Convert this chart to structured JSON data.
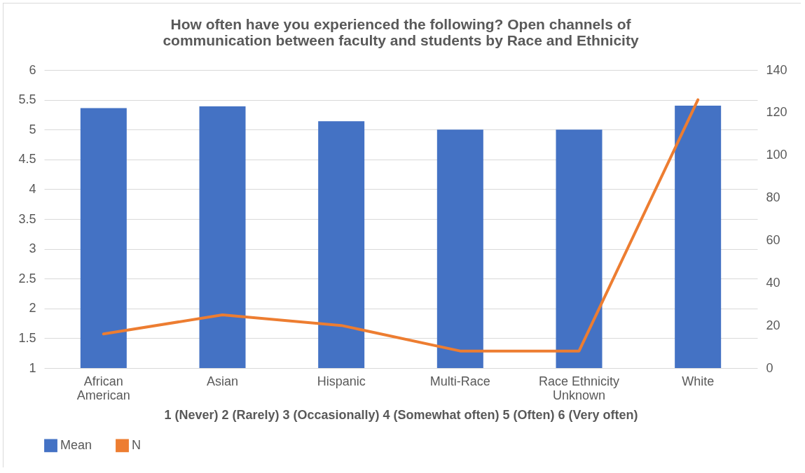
{
  "chart_data": {
    "type": "bar",
    "title": "How often have you experienced the following? Open channels of communication between faculty and students by Race and Ethnicity",
    "xlabel": "1 (Never) 2 (Rarely) 3 (Occasionally) 4 (Somewhat often) 5 (Often) 6 (Very often)",
    "categories": [
      "African American",
      "Asian",
      "Hispanic",
      "Multi-Race",
      "Race Ethnicity Unknown",
      "White"
    ],
    "series": [
      {
        "name": "Mean",
        "color": "#4472c4",
        "values": [
          5.36,
          5.39,
          5.14,
          5.0,
          5.0,
          5.4
        ]
      },
      {
        "name": "N",
        "type": "line",
        "axis": "y2",
        "color": "#ed7d31",
        "values": [
          16,
          25,
          20,
          8,
          8,
          126
        ]
      }
    ],
    "ylim": [
      1,
      6
    ],
    "yticks": [
      1,
      1.5,
      2,
      2.5,
      3,
      3.5,
      4,
      4.5,
      5,
      5.5,
      6
    ],
    "y2lim": [
      0,
      140
    ],
    "y2ticks": [
      0,
      20,
      40,
      60,
      80,
      100,
      120,
      140
    ],
    "grid": "y",
    "legend": "bottom",
    "marker": "none",
    "line_style": "solid"
  }
}
